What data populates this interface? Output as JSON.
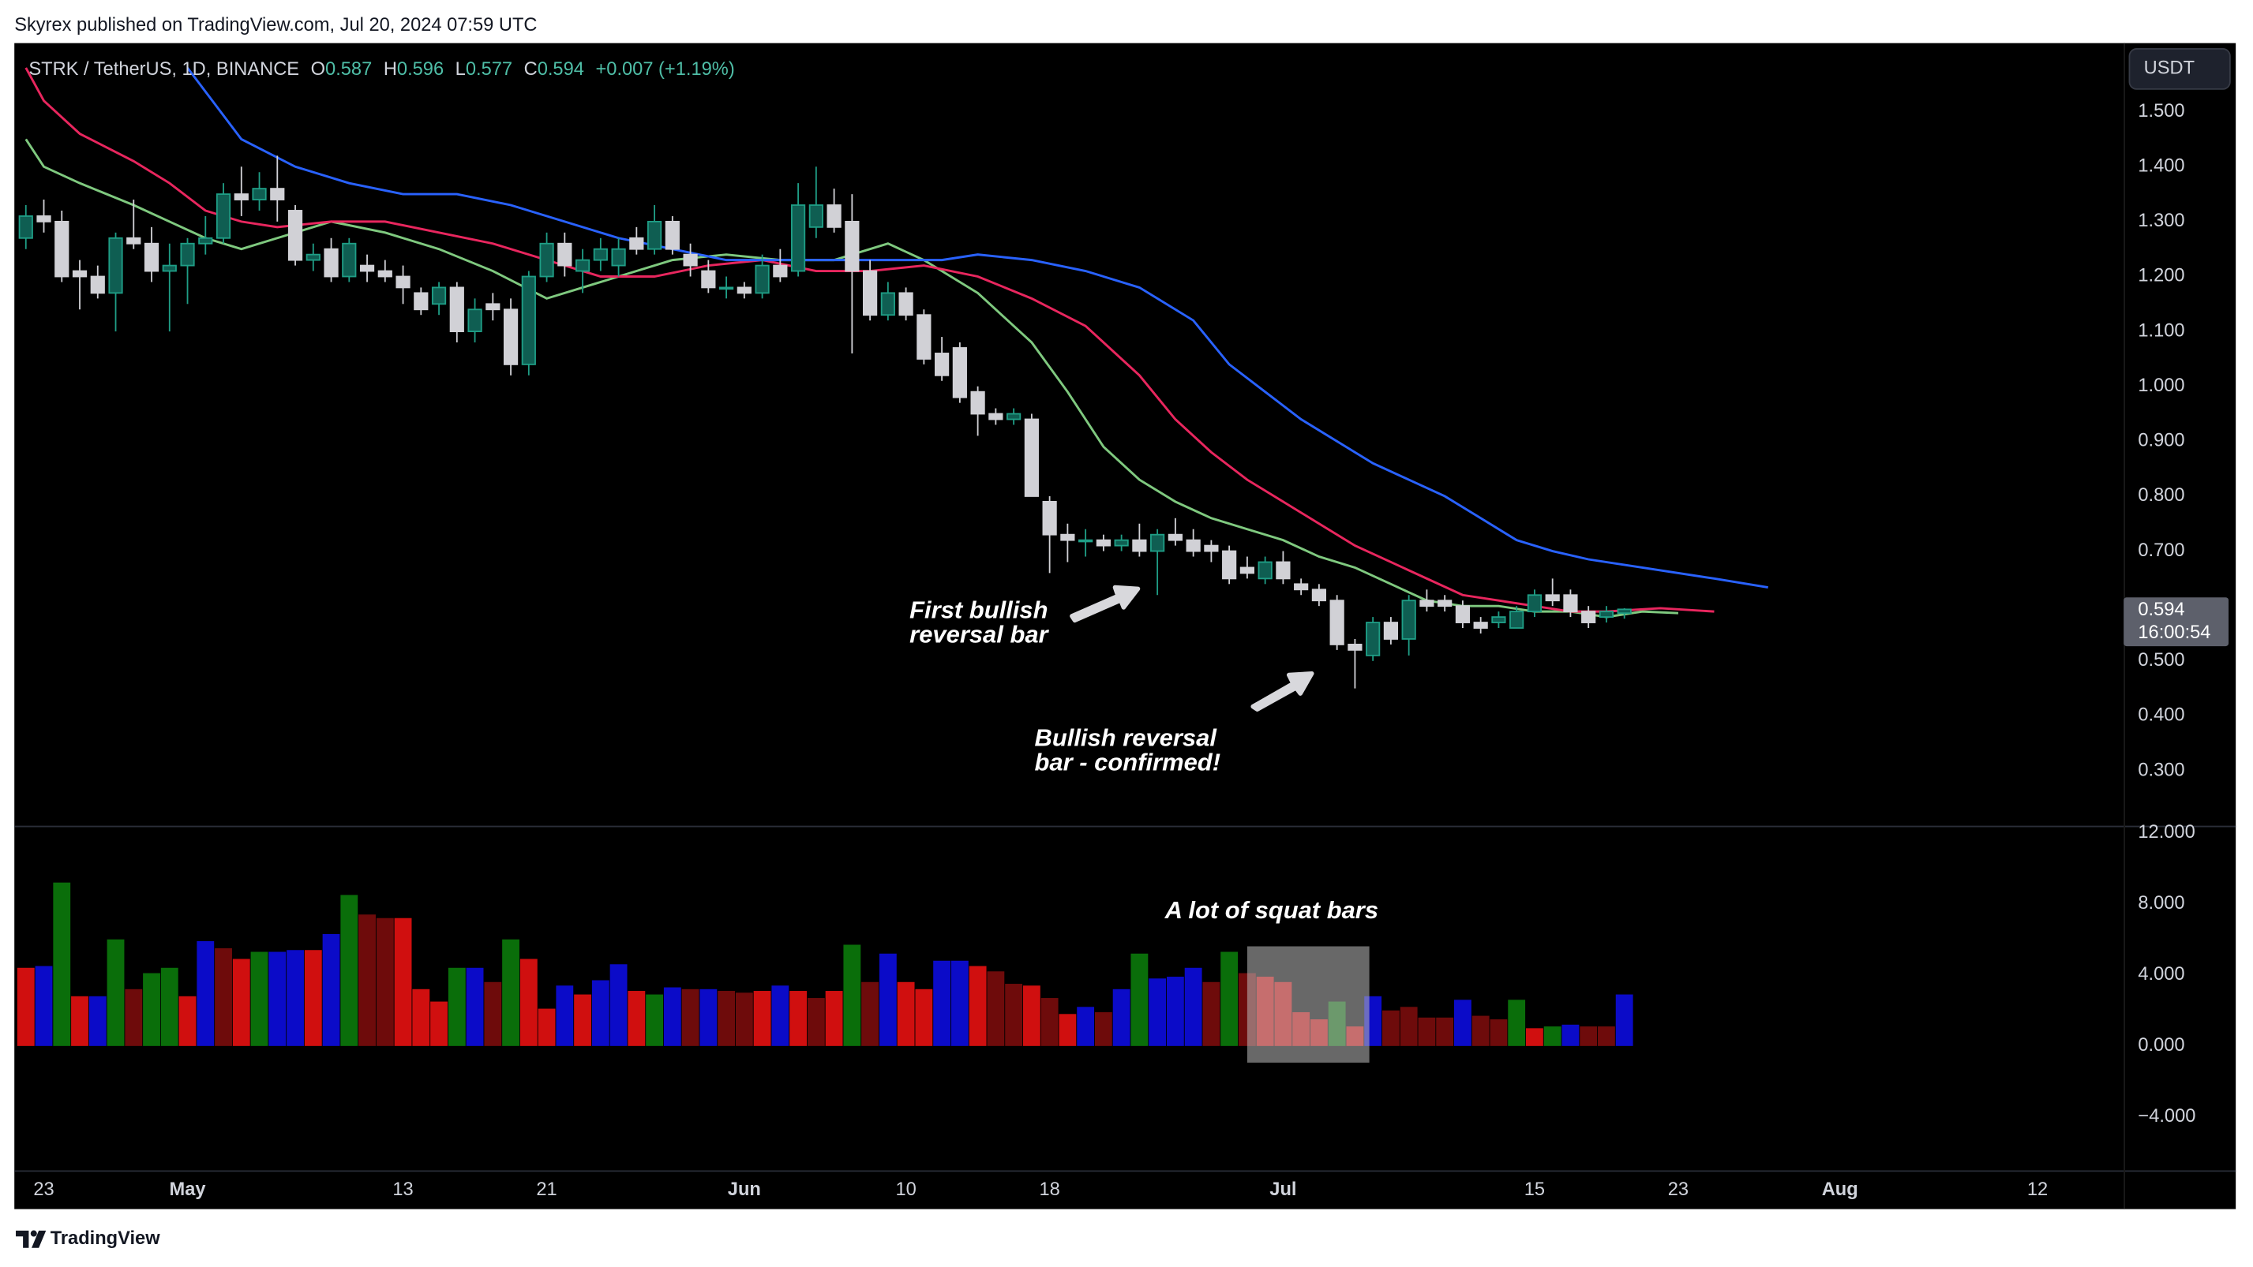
{
  "header": "Skyrex published on TradingView.com, Jul 20, 2024 07:59 UTC",
  "footer": "TradingView",
  "chart_data": {
    "type": "candlestick",
    "symbol": "STRK / TetherUS, 1D, BINANCE",
    "legend": {
      "o": "O",
      "h": "H",
      "l": "L",
      "c": "C",
      "change": "+0.007 (+1.19%)"
    },
    "currency": "USDT",
    "countdown": "16:00:54",
    "up_color": "#1f9e86",
    "down_color": "#d1d1d6",
    "categories": [
      "2024-04-22",
      "2024-04-23",
      "2024-04-24",
      "2024-04-25",
      "2024-04-26",
      "2024-04-27",
      "2024-04-28",
      "2024-04-29",
      "2024-04-30",
      "2024-05-01",
      "2024-05-02",
      "2024-05-03",
      "2024-05-04",
      "2024-05-05",
      "2024-05-06",
      "2024-05-07",
      "2024-05-08",
      "2024-05-09",
      "2024-05-10",
      "2024-05-11",
      "2024-05-12",
      "2024-05-13",
      "2024-05-14",
      "2024-05-15",
      "2024-05-16",
      "2024-05-17",
      "2024-05-18",
      "2024-05-19",
      "2024-05-20",
      "2024-05-21",
      "2024-05-22",
      "2024-05-23",
      "2024-05-24",
      "2024-05-25",
      "2024-05-26",
      "2024-05-27",
      "2024-05-28",
      "2024-05-29",
      "2024-05-30",
      "2024-05-31",
      "2024-06-01",
      "2024-06-02",
      "2024-06-03",
      "2024-06-04",
      "2024-06-05",
      "2024-06-06",
      "2024-06-07",
      "2024-06-08",
      "2024-06-09",
      "2024-06-10",
      "2024-06-11",
      "2024-06-12",
      "2024-06-13",
      "2024-06-14",
      "2024-06-15",
      "2024-06-16",
      "2024-06-17",
      "2024-06-18",
      "2024-06-19",
      "2024-06-20",
      "2024-06-21",
      "2024-06-22",
      "2024-06-23",
      "2024-06-24",
      "2024-06-25",
      "2024-06-26",
      "2024-06-27",
      "2024-06-28",
      "2024-06-29",
      "2024-06-30",
      "2024-07-01",
      "2024-07-02",
      "2024-07-03",
      "2024-07-04",
      "2024-07-05",
      "2024-07-06",
      "2024-07-07",
      "2024-07-08",
      "2024-07-09",
      "2024-07-10",
      "2024-07-11",
      "2024-07-12",
      "2024-07-13",
      "2024-07-14",
      "2024-07-15",
      "2024-07-16",
      "2024-07-17",
      "2024-07-18",
      "2024-07-19",
      "2024-07-20"
    ],
    "candles": [
      [
        1.27,
        1.33,
        1.25,
        1.31
      ],
      [
        1.31,
        1.34,
        1.28,
        1.3
      ],
      [
        1.3,
        1.32,
        1.19,
        1.2
      ],
      [
        1.21,
        1.23,
        1.14,
        1.2
      ],
      [
        1.2,
        1.22,
        1.16,
        1.17
      ],
      [
        1.17,
        1.28,
        1.1,
        1.27
      ],
      [
        1.27,
        1.34,
        1.25,
        1.26
      ],
      [
        1.26,
        1.29,
        1.19,
        1.21
      ],
      [
        1.21,
        1.26,
        1.1,
        1.22
      ],
      [
        1.22,
        1.27,
        1.15,
        1.26
      ],
      [
        1.26,
        1.31,
        1.24,
        1.27
      ],
      [
        1.27,
        1.37,
        1.26,
        1.35
      ],
      [
        1.35,
        1.4,
        1.31,
        1.34
      ],
      [
        1.34,
        1.39,
        1.32,
        1.36
      ],
      [
        1.36,
        1.42,
        1.3,
        1.34
      ],
      [
        1.32,
        1.33,
        1.22,
        1.23
      ],
      [
        1.23,
        1.26,
        1.21,
        1.24
      ],
      [
        1.25,
        1.27,
        1.19,
        1.2
      ],
      [
        1.2,
        1.27,
        1.19,
        1.26
      ],
      [
        1.22,
        1.24,
        1.19,
        1.21
      ],
      [
        1.21,
        1.23,
        1.19,
        1.2
      ],
      [
        1.2,
        1.22,
        1.15,
        1.18
      ],
      [
        1.17,
        1.18,
        1.13,
        1.14
      ],
      [
        1.15,
        1.19,
        1.13,
        1.18
      ],
      [
        1.18,
        1.19,
        1.08,
        1.1
      ],
      [
        1.1,
        1.16,
        1.08,
        1.14
      ],
      [
        1.15,
        1.17,
        1.12,
        1.14
      ],
      [
        1.14,
        1.16,
        1.02,
        1.04
      ],
      [
        1.04,
        1.21,
        1.02,
        1.2
      ],
      [
        1.2,
        1.28,
        1.19,
        1.26
      ],
      [
        1.26,
        1.28,
        1.2,
        1.22
      ],
      [
        1.21,
        1.25,
        1.17,
        1.23
      ],
      [
        1.23,
        1.27,
        1.21,
        1.25
      ],
      [
        1.22,
        1.27,
        1.2,
        1.25
      ],
      [
        1.27,
        1.29,
        1.24,
        1.25
      ],
      [
        1.25,
        1.33,
        1.24,
        1.3
      ],
      [
        1.3,
        1.31,
        1.24,
        1.25
      ],
      [
        1.24,
        1.26,
        1.2,
        1.22
      ],
      [
        1.21,
        1.23,
        1.17,
        1.18
      ],
      [
        1.18,
        1.2,
        1.16,
        1.18
      ],
      [
        1.18,
        1.19,
        1.16,
        1.17
      ],
      [
        1.17,
        1.24,
        1.16,
        1.22
      ],
      [
        1.22,
        1.25,
        1.19,
        1.2
      ],
      [
        1.21,
        1.37,
        1.2,
        1.33
      ],
      [
        1.29,
        1.4,
        1.27,
        1.33
      ],
      [
        1.33,
        1.36,
        1.28,
        1.29
      ],
      [
        1.3,
        1.35,
        1.06,
        1.21
      ],
      [
        1.21,
        1.23,
        1.12,
        1.13
      ],
      [
        1.13,
        1.19,
        1.12,
        1.17
      ],
      [
        1.17,
        1.18,
        1.12,
        1.13
      ],
      [
        1.13,
        1.14,
        1.04,
        1.05
      ],
      [
        1.06,
        1.09,
        1.01,
        1.02
      ],
      [
        1.07,
        1.08,
        0.97,
        0.98
      ],
      [
        0.99,
        1.0,
        0.91,
        0.95
      ],
      [
        0.95,
        0.96,
        0.93,
        0.94
      ],
      [
        0.94,
        0.96,
        0.93,
        0.95
      ],
      [
        0.94,
        0.95,
        0.8,
        0.8
      ],
      [
        0.79,
        0.8,
        0.66,
        0.73
      ],
      [
        0.73,
        0.75,
        0.68,
        0.72
      ],
      [
        0.72,
        0.74,
        0.69,
        0.72
      ],
      [
        0.72,
        0.73,
        0.7,
        0.71
      ],
      [
        0.71,
        0.73,
        0.7,
        0.72
      ],
      [
        0.72,
        0.75,
        0.69,
        0.7
      ],
      [
        0.7,
        0.74,
        0.62,
        0.73
      ],
      [
        0.73,
        0.76,
        0.71,
        0.72
      ],
      [
        0.72,
        0.74,
        0.69,
        0.7
      ],
      [
        0.71,
        0.72,
        0.68,
        0.7
      ],
      [
        0.7,
        0.71,
        0.64,
        0.65
      ],
      [
        0.67,
        0.69,
        0.65,
        0.66
      ],
      [
        0.65,
        0.69,
        0.64,
        0.68
      ],
      [
        0.68,
        0.7,
        0.64,
        0.65
      ],
      [
        0.64,
        0.65,
        0.62,
        0.63
      ],
      [
        0.63,
        0.64,
        0.6,
        0.61
      ],
      [
        0.61,
        0.62,
        0.52,
        0.53
      ],
      [
        0.53,
        0.54,
        0.45,
        0.52
      ],
      [
        0.51,
        0.58,
        0.5,
        0.57
      ],
      [
        0.57,
        0.58,
        0.53,
        0.54
      ],
      [
        0.54,
        0.62,
        0.51,
        0.61
      ],
      [
        0.61,
        0.63,
        0.59,
        0.6
      ],
      [
        0.61,
        0.62,
        0.59,
        0.6
      ],
      [
        0.6,
        0.61,
        0.56,
        0.57
      ],
      [
        0.57,
        0.58,
        0.55,
        0.56
      ],
      [
        0.57,
        0.59,
        0.56,
        0.58
      ],
      [
        0.56,
        0.6,
        0.56,
        0.59
      ],
      [
        0.59,
        0.63,
        0.58,
        0.62
      ],
      [
        0.62,
        0.65,
        0.6,
        0.61
      ],
      [
        0.62,
        0.63,
        0.58,
        0.59
      ],
      [
        0.59,
        0.6,
        0.56,
        0.57
      ],
      [
        0.58,
        0.6,
        0.57,
        0.59
      ],
      [
        0.587,
        0.596,
        0.577,
        0.594
      ]
    ],
    "lines": [
      {
        "color": "#7fc97f",
        "x": [
          "2024-04-22",
          "2024-04-23",
          "2024-04-25",
          "2024-04-28",
          "2024-04-30",
          "2024-05-02",
          "2024-05-04",
          "2024-05-06",
          "2024-05-09",
          "2024-05-12",
          "2024-05-15",
          "2024-05-18",
          "2024-05-21",
          "2024-05-23",
          "2024-05-25",
          "2024-05-28",
          "2024-05-31",
          "2024-06-03",
          "2024-06-06",
          "2024-06-09",
          "2024-06-11",
          "2024-06-14",
          "2024-06-17",
          "2024-06-19",
          "2024-06-21",
          "2024-06-23",
          "2024-06-25",
          "2024-06-27",
          "2024-06-29",
          "2024-07-01",
          "2024-07-03",
          "2024-07-05",
          "2024-07-07",
          "2024-07-09",
          "2024-07-11",
          "2024-07-13",
          "2024-07-15",
          "2024-07-17",
          "2024-07-19",
          "2024-07-21",
          "2024-07-23"
        ],
        "values": [
          1.45,
          1.4,
          1.37,
          1.33,
          1.3,
          1.27,
          1.25,
          1.27,
          1.3,
          1.28,
          1.25,
          1.21,
          1.16,
          1.18,
          1.2,
          1.23,
          1.24,
          1.23,
          1.23,
          1.26,
          1.23,
          1.17,
          1.08,
          0.99,
          0.89,
          0.83,
          0.79,
          0.76,
          0.74,
          0.72,
          0.69,
          0.67,
          0.64,
          0.61,
          0.6,
          0.6,
          0.59,
          0.59,
          0.58,
          0.59,
          0.587
        ]
      },
      {
        "color": "#e8265e",
        "x": [
          "2024-04-22",
          "2024-04-23",
          "2024-04-25",
          "2024-04-28",
          "2024-04-30",
          "2024-05-02",
          "2024-05-04",
          "2024-05-06",
          "2024-05-09",
          "2024-05-12",
          "2024-05-15",
          "2024-05-18",
          "2024-05-21",
          "2024-05-24",
          "2024-05-27",
          "2024-05-30",
          "2024-06-02",
          "2024-06-05",
          "2024-06-08",
          "2024-06-11",
          "2024-06-14",
          "2024-06-17",
          "2024-06-20",
          "2024-06-23",
          "2024-06-25",
          "2024-06-27",
          "2024-06-29",
          "2024-07-01",
          "2024-07-03",
          "2024-07-05",
          "2024-07-07",
          "2024-07-09",
          "2024-07-11",
          "2024-07-13",
          "2024-07-15",
          "2024-07-17",
          "2024-07-19",
          "2024-07-22",
          "2024-07-25"
        ],
        "values": [
          1.58,
          1.52,
          1.46,
          1.41,
          1.37,
          1.32,
          1.3,
          1.29,
          1.3,
          1.3,
          1.28,
          1.26,
          1.23,
          1.2,
          1.2,
          1.22,
          1.23,
          1.21,
          1.21,
          1.22,
          1.2,
          1.16,
          1.11,
          1.02,
          0.94,
          0.88,
          0.83,
          0.79,
          0.75,
          0.71,
          0.68,
          0.65,
          0.62,
          0.61,
          0.6,
          0.59,
          0.59,
          0.596,
          0.59
        ]
      },
      {
        "color": "#2962ff",
        "x": [
          "2024-05-01",
          "2024-05-04",
          "2024-05-07",
          "2024-05-10",
          "2024-05-13",
          "2024-05-16",
          "2024-05-19",
          "2024-05-22",
          "2024-05-25",
          "2024-05-28",
          "2024-05-31",
          "2024-06-03",
          "2024-06-06",
          "2024-06-09",
          "2024-06-12",
          "2024-06-14",
          "2024-06-17",
          "2024-06-20",
          "2024-06-23",
          "2024-06-26",
          "2024-06-28",
          "2024-06-30",
          "2024-07-02",
          "2024-07-04",
          "2024-07-06",
          "2024-07-08",
          "2024-07-10",
          "2024-07-12",
          "2024-07-14",
          "2024-07-16",
          "2024-07-18",
          "2024-07-21",
          "2024-07-25",
          "2024-07-28"
        ],
        "values": [
          1.58,
          1.45,
          1.4,
          1.37,
          1.35,
          1.35,
          1.33,
          1.3,
          1.27,
          1.25,
          1.23,
          1.23,
          1.23,
          1.23,
          1.23,
          1.24,
          1.23,
          1.21,
          1.18,
          1.12,
          1.04,
          0.99,
          0.94,
          0.9,
          0.86,
          0.83,
          0.8,
          0.76,
          0.72,
          0.7,
          0.685,
          0.67,
          0.65,
          0.634
        ]
      }
    ],
    "xlim": [
      "2024-04-21",
      "2024-08-17"
    ],
    "xticks": [
      {
        "value": "2024-04-23",
        "label": "23"
      },
      {
        "value": "2024-05-01",
        "label": "May"
      },
      {
        "value": "2024-05-13",
        "label": "13"
      },
      {
        "value": "2024-05-21",
        "label": "21"
      },
      {
        "value": "2024-06-01",
        "label": "Jun"
      },
      {
        "value": "2024-06-10",
        "label": "10"
      },
      {
        "value": "2024-06-18",
        "label": "18"
      },
      {
        "value": "2024-07-01",
        "label": "Jul"
      },
      {
        "value": "2024-07-15",
        "label": "15"
      },
      {
        "value": "2024-07-23",
        "label": "23"
      },
      {
        "value": "2024-08-01",
        "label": "Aug"
      },
      {
        "value": "2024-08-12",
        "label": "12"
      }
    ],
    "ylim": [
      0.2,
      1.625
    ],
    "yticks": [
      {
        "value": 1.5,
        "label": "1.500"
      },
      {
        "value": 1.4,
        "label": "1.400"
      },
      {
        "value": 1.3,
        "label": "1.300"
      },
      {
        "value": 1.2,
        "label": "1.200"
      },
      {
        "value": 1.1,
        "label": "1.100"
      },
      {
        "value": 1.0,
        "label": "1.000"
      },
      {
        "value": 0.9,
        "label": "0.900"
      },
      {
        "value": 0.8,
        "label": "0.800"
      },
      {
        "value": 0.7,
        "label": "0.700"
      },
      {
        "value": 0.5,
        "label": "0.500"
      },
      {
        "value": 0.4,
        "label": "0.400"
      },
      {
        "value": 0.3,
        "label": "0.300"
      }
    ],
    "grid": false,
    "histogram": {
      "type": "bar",
      "values": [
        4.4,
        4.5,
        9.2,
        2.8,
        2.8,
        6.0,
        3.2,
        4.1,
        4.4,
        2.8,
        5.9,
        5.5,
        4.9,
        5.3,
        5.3,
        5.4,
        5.4,
        6.3,
        8.5,
        7.4,
        7.2,
        7.2,
        3.2,
        2.5,
        4.4,
        4.4,
        3.6,
        6.0,
        4.9,
        2.1,
        3.4,
        2.9,
        3.7,
        4.6,
        3.1,
        2.9,
        3.3,
        3.2,
        3.2,
        3.1,
        3.0,
        3.1,
        3.4,
        3.1,
        2.7,
        3.1,
        5.7,
        3.6,
        5.2,
        3.6,
        3.2,
        4.8,
        4.8,
        4.5,
        4.2,
        3.5,
        3.4,
        2.7,
        1.8,
        2.2,
        1.9,
        3.2,
        5.2,
        3.8,
        3.9,
        4.4,
        3.6,
        5.3,
        4.1,
        3.9,
        3.6,
        1.9,
        1.5,
        2.5,
        1.1,
        2.8,
        2.0,
        2.2,
        1.6,
        1.6,
        2.6,
        1.7,
        1.5,
        2.6,
        1.0,
        1.1,
        1.2,
        1.1,
        1.1,
        2.9
      ],
      "colors": [
        "#d00f0f",
        "#0b0bc8",
        "#0a6e0a",
        "#d00f0f",
        "#0b0bc8",
        "#0a6e0a",
        "#6e0b0b",
        "#0a6e0a",
        "#0a6e0a",
        "#d00f0f",
        "#0b0bc8",
        "#6e0b0b",
        "#d00f0f",
        "#0a6e0a",
        "#0b0bc8",
        "#0b0bc8",
        "#d00f0f",
        "#0b0bc8",
        "#0a6e0a",
        "#6e0b0b",
        "#6e0b0b",
        "#d00f0f",
        "#d00f0f",
        "#d00f0f",
        "#0a6e0a",
        "#0b0bc8",
        "#6e0b0b",
        "#0a6e0a",
        "#d00f0f",
        "#d00f0f",
        "#0b0bc8",
        "#d00f0f",
        "#0b0bc8",
        "#0b0bc8",
        "#d00f0f",
        "#0a6e0a",
        "#0b0bc8",
        "#6e0b0b",
        "#0b0bc8",
        "#6e0b0b",
        "#6e0b0b",
        "#d00f0f",
        "#0b0bc8",
        "#d00f0f",
        "#6e0b0b",
        "#d00f0f",
        "#0a6e0a",
        "#6e0b0b",
        "#0b0bc8",
        "#d00f0f",
        "#d00f0f",
        "#0b0bc8",
        "#0b0bc8",
        "#d00f0f",
        "#6e0b0b",
        "#6e0b0b",
        "#d00f0f",
        "#6e0b0b",
        "#d00f0f",
        "#0b0bc8",
        "#6e0b0b",
        "#0b0bc8",
        "#0a6e0a",
        "#0b0bc8",
        "#0b0bc8",
        "#0b0bc8",
        "#6e0b0b",
        "#0a6e0a",
        "#6e0b0b",
        "#d00f0f",
        "#d00f0f",
        "#d00f0f",
        "#d00f0f",
        "#0a6e0a",
        "#d00f0f",
        "#0b0bc8",
        "#6e0b0b",
        "#6e0b0b",
        "#6e0b0b",
        "#6e0b0b",
        "#0b0bc8",
        "#6e0b0b",
        "#6e0b0b",
        "#0a6e0a",
        "#d00f0f",
        "#0a6e0a",
        "#0b0bc8",
        "#6e0b0b",
        "#6e0b0b",
        "#0b0bc8"
      ],
      "ylim": [
        -7,
        12.4
      ],
      "yticks": [
        {
          "value": 12,
          "label": "12.000"
        },
        {
          "value": 8,
          "label": "8.000"
        },
        {
          "value": 4,
          "label": "4.000"
        },
        {
          "value": 0,
          "label": "0.000"
        },
        {
          "value": -4,
          "label": "−4.000"
        }
      ]
    },
    "annotations": [
      {
        "lines": [
          "First bullish",
          "reversal bar"
        ]
      },
      {
        "lines": [
          "Bullish reversal",
          "bar - confirmed!"
        ]
      },
      {
        "lines": [
          "A lot of squat bars"
        ]
      }
    ]
  }
}
